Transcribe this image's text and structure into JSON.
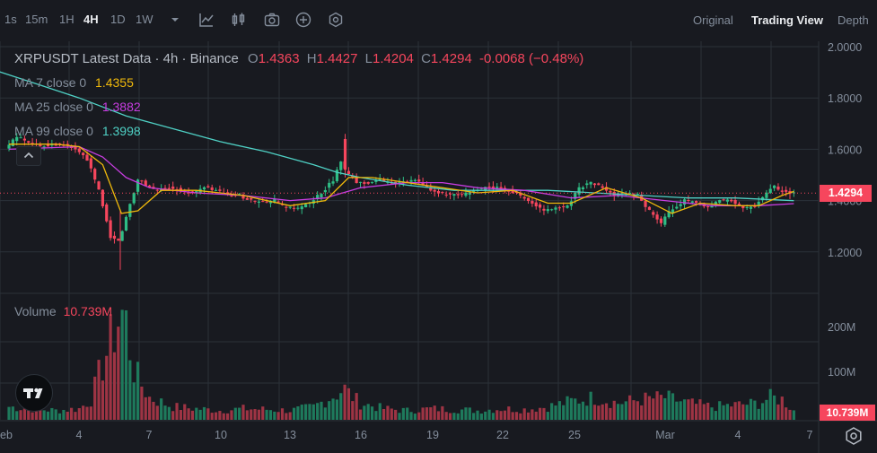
{
  "toolbar": {
    "timeframes": [
      "1s",
      "15m",
      "1H",
      "4H",
      "1D",
      "1W"
    ],
    "active_timeframe": "4H",
    "icons": [
      "chevron-down-icon",
      "indicator-icon",
      "candle-type-icon",
      "camera-icon",
      "add-icon",
      "settings-hex-icon"
    ],
    "views": [
      "Original",
      "Trading View",
      "Depth"
    ],
    "active_view": "Trading View"
  },
  "legend": {
    "title": "XRPUSDT Latest Data · 4h · Binance",
    "o_label": "O",
    "o": "1.4363",
    "h_label": "H",
    "h": "1.4427",
    "l_label": "L",
    "l": "1.4204",
    "c_label": "C",
    "c": "1.4294",
    "change": "-0.0068 (−0.48%)",
    "ma7_label": "MA 7 close 0",
    "ma7": "1.4355",
    "ma25_label": "MA 25 close 0",
    "ma25": "1.3882",
    "ma99_label": "MA 99 close 0",
    "ma99": "1.3998",
    "volume_label": "Volume",
    "volume": "10.739M",
    "collapse_icon": "chevron-up-icon"
  },
  "price_axis": {
    "current_price": "1.4294",
    "current_volume": "10.739M"
  },
  "colors": {
    "background": "#181a20",
    "up": "#2ebd85",
    "down": "#f6465d",
    "ma7": "#f0b90b",
    "ma25": "#c73de0",
    "ma99": "#4fd1c5",
    "grid": "#2b3139",
    "text": "#848e9c"
  },
  "chart_data": {
    "type": "candlestick",
    "symbol": "XRPUSDT",
    "interval": "4h",
    "exchange": "Binance",
    "x_ticks": [
      "eb",
      "4",
      "7",
      "10",
      "13",
      "16",
      "19",
      "22",
      "25",
      "Mar",
      "4",
      "7"
    ],
    "price_axis_ticks": [
      "2.0000",
      "1.8000",
      "1.6000",
      "1.4000",
      "1.2000"
    ],
    "price_range": [
      1.05,
      2.05
    ],
    "volume_axis_ticks": [
      "200M",
      "100M"
    ],
    "volume_range": [
      0,
      300000000
    ],
    "last_price": 1.4294,
    "price_path": [
      [
        1.0,
        1.6
      ],
      [
        1.5,
        1.65
      ],
      [
        2.0,
        1.63
      ],
      [
        2.5,
        1.61
      ],
      [
        3.0,
        1.62
      ],
      [
        3.5,
        1.62
      ],
      [
        4.0,
        1.6
      ],
      [
        4.5,
        1.56
      ],
      [
        5.0,
        1.44
      ],
      [
        5.3,
        1.33
      ],
      [
        5.5,
        1.26
      ],
      [
        5.8,
        1.24
      ],
      [
        6.0,
        1.28
      ],
      [
        6.3,
        1.38
      ],
      [
        6.7,
        1.49
      ],
      [
        7.0,
        1.46
      ],
      [
        7.5,
        1.44
      ],
      [
        8.0,
        1.45
      ],
      [
        8.5,
        1.44
      ],
      [
        9.0,
        1.43
      ],
      [
        9.5,
        1.45
      ],
      [
        10.0,
        1.44
      ],
      [
        10.5,
        1.42
      ],
      [
        11.0,
        1.42
      ],
      [
        11.5,
        1.4
      ],
      [
        12.0,
        1.39
      ],
      [
        12.5,
        1.4
      ],
      [
        13.0,
        1.37
      ],
      [
        13.5,
        1.37
      ],
      [
        14.0,
        1.39
      ],
      [
        14.5,
        1.43
      ],
      [
        15.0,
        1.48
      ],
      [
        15.3,
        1.56
      ],
      [
        15.5,
        1.52
      ],
      [
        16.0,
        1.47
      ],
      [
        16.5,
        1.47
      ],
      [
        17.0,
        1.48
      ],
      [
        17.5,
        1.47
      ],
      [
        18.0,
        1.47
      ],
      [
        18.5,
        1.48
      ],
      [
        19.0,
        1.45
      ],
      [
        19.5,
        1.43
      ],
      [
        20.0,
        1.42
      ],
      [
        20.5,
        1.42
      ],
      [
        21.0,
        1.44
      ],
      [
        21.5,
        1.45
      ],
      [
        22.0,
        1.45
      ],
      [
        22.5,
        1.44
      ],
      [
        23.0,
        1.42
      ],
      [
        23.5,
        1.39
      ],
      [
        24.0,
        1.36
      ],
      [
        24.5,
        1.37
      ],
      [
        25.0,
        1.38
      ],
      [
        25.5,
        1.45
      ],
      [
        26.0,
        1.47
      ],
      [
        26.5,
        1.45
      ],
      [
        27.0,
        1.42
      ],
      [
        27.5,
        1.43
      ],
      [
        28.0,
        1.42
      ],
      [
        28.5,
        1.36
      ],
      [
        29.0,
        1.31
      ],
      [
        29.3,
        1.35
      ],
      [
        29.5,
        1.37
      ],
      [
        30.0,
        1.4
      ],
      [
        30.5,
        1.39
      ],
      [
        31.0,
        1.37
      ],
      [
        31.5,
        1.4
      ],
      [
        32.0,
        1.4
      ],
      [
        32.5,
        1.37
      ],
      [
        33.0,
        1.38
      ],
      [
        33.5,
        1.43
      ],
      [
        33.8,
        1.46
      ],
      [
        34.0,
        1.44
      ],
      [
        34.5,
        1.43
      ]
    ],
    "volume_bars": [
      [
        1.0,
        35
      ],
      [
        2.0,
        30
      ],
      [
        3.0,
        25
      ],
      [
        4.0,
        30
      ],
      [
        4.5,
        55
      ],
      [
        5.0,
        150
      ],
      [
        5.5,
        240
      ],
      [
        5.8,
        290
      ],
      [
        6.0,
        260
      ],
      [
        6.3,
        140
      ],
      [
        6.6,
        100
      ],
      [
        7.0,
        60
      ],
      [
        8.0,
        35
      ],
      [
        9.0,
        30
      ],
      [
        10.0,
        25
      ],
      [
        11.0,
        30
      ],
      [
        12.0,
        28
      ],
      [
        13.0,
        25
      ],
      [
        14.0,
        35
      ],
      [
        15.0,
        70
      ],
      [
        15.3,
        85
      ],
      [
        15.6,
        65
      ],
      [
        16.0,
        45
      ],
      [
        17.0,
        30
      ],
      [
        18.0,
        25
      ],
      [
        19.0,
        30
      ],
      [
        20.0,
        28
      ],
      [
        21.0,
        25
      ],
      [
        22.0,
        30
      ],
      [
        23.0,
        28
      ],
      [
        24.0,
        35
      ],
      [
        25.0,
        50
      ],
      [
        26.0,
        60
      ],
      [
        27.0,
        45
      ],
      [
        28.0,
        55
      ],
      [
        29.0,
        60
      ],
      [
        30.0,
        45
      ],
      [
        31.0,
        35
      ],
      [
        32.0,
        40
      ],
      [
        33.0,
        45
      ],
      [
        33.5,
        60
      ],
      [
        34.0,
        55
      ],
      [
        34.5,
        25
      ]
    ],
    "ma7": [
      [
        1.0,
        1.62
      ],
      [
        3.0,
        1.62
      ],
      [
        4.0,
        1.61
      ],
      [
        5.0,
        1.54
      ],
      [
        5.8,
        1.35
      ],
      [
        6.5,
        1.36
      ],
      [
        7.5,
        1.44
      ],
      [
        9.0,
        1.44
      ],
      [
        11.0,
        1.42
      ],
      [
        13.0,
        1.38
      ],
      [
        14.5,
        1.4
      ],
      [
        15.5,
        1.49
      ],
      [
        16.5,
        1.49
      ],
      [
        18.0,
        1.47
      ],
      [
        19.5,
        1.45
      ],
      [
        21.0,
        1.43
      ],
      [
        22.5,
        1.44
      ],
      [
        24.0,
        1.39
      ],
      [
        25.0,
        1.39
      ],
      [
        26.5,
        1.45
      ],
      [
        28.0,
        1.41
      ],
      [
        29.3,
        1.35
      ],
      [
        30.5,
        1.39
      ],
      [
        32.0,
        1.38
      ],
      [
        33.0,
        1.38
      ],
      [
        34.0,
        1.42
      ],
      [
        34.5,
        1.4355
      ]
    ],
    "ma25": [
      [
        1.0,
        1.6
      ],
      [
        4.0,
        1.61
      ],
      [
        5.0,
        1.57
      ],
      [
        6.0,
        1.49
      ],
      [
        7.0,
        1.45
      ],
      [
        9.0,
        1.43
      ],
      [
        11.0,
        1.42
      ],
      [
        13.0,
        1.4
      ],
      [
        14.5,
        1.41
      ],
      [
        16.0,
        1.45
      ],
      [
        18.0,
        1.47
      ],
      [
        19.5,
        1.47
      ],
      [
        21.0,
        1.45
      ],
      [
        23.0,
        1.44
      ],
      [
        25.0,
        1.41
      ],
      [
        27.0,
        1.42
      ],
      [
        29.0,
        1.4
      ],
      [
        31.0,
        1.38
      ],
      [
        33.0,
        1.38
      ],
      [
        34.5,
        1.3882
      ]
    ],
    "ma99": [
      [
        0.0,
        1.92
      ],
      [
        2.0,
        1.86
      ],
      [
        4.0,
        1.8
      ],
      [
        6.0,
        1.73
      ],
      [
        8.0,
        1.68
      ],
      [
        10.0,
        1.63
      ],
      [
        12.0,
        1.59
      ],
      [
        14.0,
        1.54
      ],
      [
        15.0,
        1.51
      ],
      [
        16.0,
        1.49
      ],
      [
        18.0,
        1.46
      ],
      [
        20.0,
        1.44
      ],
      [
        22.0,
        1.44
      ],
      [
        24.0,
        1.44
      ],
      [
        26.0,
        1.43
      ],
      [
        28.0,
        1.42
      ],
      [
        30.0,
        1.41
      ],
      [
        32.0,
        1.41
      ],
      [
        34.5,
        1.3998
      ]
    ]
  }
}
